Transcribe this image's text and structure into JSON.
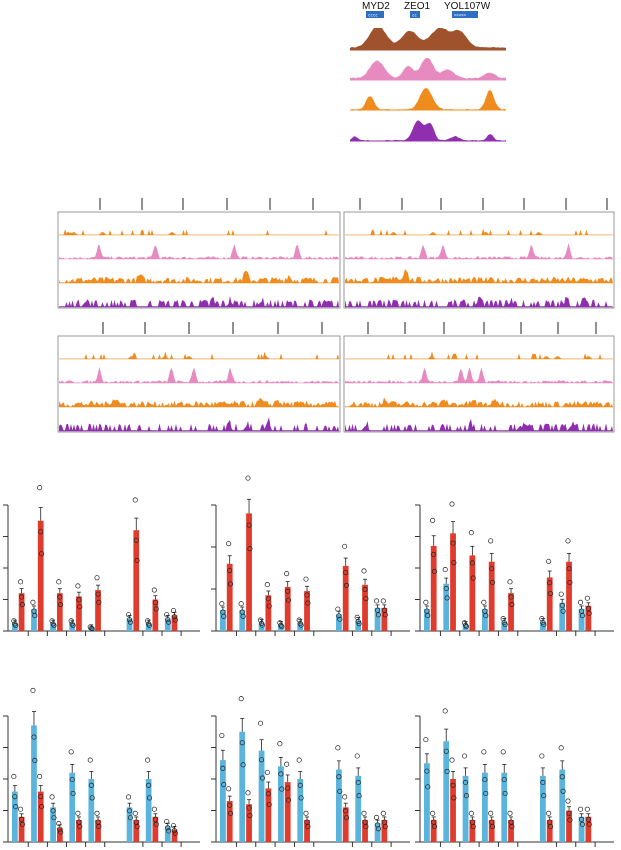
{
  "colors": {
    "brown": "#a0522d",
    "pink": "#e68ac0",
    "orange": "#f08c1e",
    "purple": "#8f2fb0",
    "gene_box": "#2f6fc2",
    "bar_blue": "#5ab4dc",
    "bar_red": "#e03c2e",
    "axis": "#333333",
    "panel_border": "#9a9a9a"
  },
  "genes": [
    {
      "name": "MYD2",
      "arrows": "cccc"
    },
    {
      "name": "ZEO1",
      "arrows": "cc"
    },
    {
      "name": "YOL107W",
      "arrows": ">>>>>"
    }
  ],
  "track_colors": [
    "orange",
    "pink",
    "orange",
    "purple"
  ],
  "chart_data": [
    {
      "type": "bar",
      "groups": 8,
      "gap_after": 5,
      "ylim": [
        0,
        4
      ],
      "ticks": 4,
      "series": [
        {
          "color": "blue",
          "values": [
            0.25,
            0.7,
            0.25,
            0.25,
            0.1,
            0.4,
            0.25,
            0.4
          ]
        },
        {
          "color": "red",
          "values": [
            1.2,
            3.5,
            1.2,
            1.1,
            1.3,
            3.2,
            1.0,
            0.5
          ]
        }
      ]
    },
    {
      "type": "bar",
      "groups": 8,
      "gap_after": 5,
      "ylim": [
        0,
        3
      ],
      "ticks": 3,
      "series": [
        {
          "color": "blue",
          "values": [
            0.5,
            0.5,
            0.2,
            0.15,
            0.2,
            0.4,
            0.25,
            0.55
          ]
        },
        {
          "color": "red",
          "values": [
            1.6,
            2.8,
            0.85,
            1.05,
            0.95,
            1.55,
            1.1,
            0.55
          ]
        }
      ]
    },
    {
      "type": "bar",
      "groups": 8,
      "gap_after": 5,
      "ylim": [
        0,
        4
      ],
      "ticks": 4,
      "series": [
        {
          "color": "blue",
          "values": [
            0.7,
            1.5,
            0.2,
            0.7,
            0.3,
            0.3,
            0.9,
            0.7
          ]
        },
        {
          "color": "red",
          "values": [
            2.7,
            3.1,
            2.4,
            2.2,
            1.2,
            1.7,
            2.2,
            0.8
          ]
        }
      ]
    },
    {
      "type": "bar",
      "groups": 8,
      "gap_after": 5,
      "ylim": [
        0,
        4
      ],
      "ticks": 4,
      "series": [
        {
          "color": "blue",
          "values": [
            1.6,
            3.7,
            1.1,
            2.2,
            2.0,
            1.1,
            2.0,
            0.5
          ]
        },
        {
          "color": "red",
          "values": [
            0.8,
            1.6,
            0.45,
            0.7,
            0.7,
            0.7,
            0.8,
            0.4
          ]
        }
      ]
    },
    {
      "type": "bar",
      "groups": 8,
      "gap_after": 5,
      "ylim": [
        0,
        4
      ],
      "ticks": 4,
      "series": [
        {
          "color": "blue",
          "values": [
            2.6,
            3.5,
            2.9,
            2.4,
            2.0,
            2.3,
            2.1,
            0.6
          ]
        },
        {
          "color": "red",
          "values": [
            1.3,
            1.2,
            1.7,
            1.9,
            0.7,
            1.1,
            0.7,
            0.7
          ]
        }
      ]
    },
    {
      "type": "bar",
      "groups": 8,
      "gap_after": 5,
      "ylim": [
        0,
        4
      ],
      "ticks": 4,
      "series": [
        {
          "color": "blue",
          "values": [
            2.5,
            3.2,
            2.1,
            2.2,
            2.2,
            2.1,
            2.3,
            0.8
          ]
        },
        {
          "color": "red",
          "values": [
            0.7,
            2.0,
            0.7,
            0.7,
            0.7,
            0.7,
            1.0,
            0.8
          ]
        }
      ]
    }
  ]
}
